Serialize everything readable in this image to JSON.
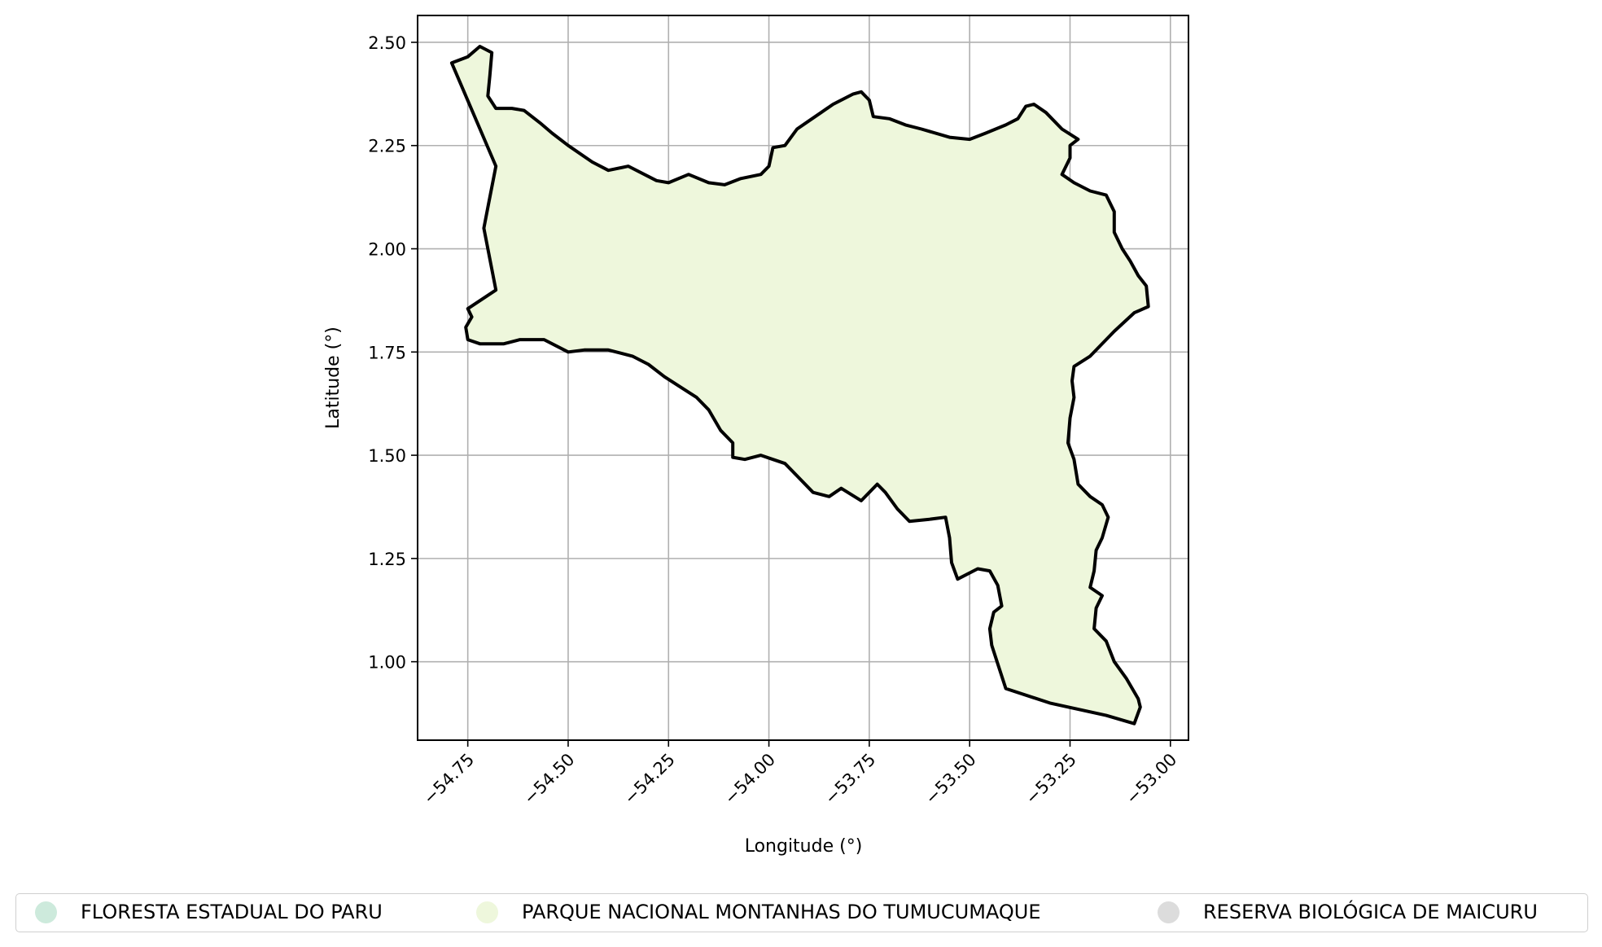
{
  "chart_data": {
    "type": "map",
    "xlabel": "Longitude (°)",
    "ylabel": "Latitude (°)",
    "xlim": [
      -54.875,
      -52.955
    ],
    "ylim": [
      0.81,
      2.565
    ],
    "x_ticks": [
      "−54.75",
      "−54.50",
      "−54.25",
      "−54.00",
      "−53.75",
      "−53.50",
      "−53.25",
      "−53.00"
    ],
    "x_tick_values": [
      -54.75,
      -54.5,
      -54.25,
      -54.0,
      -53.75,
      -53.5,
      -53.25,
      -53.0
    ],
    "y_ticks": [
      "1.00",
      "1.25",
      "1.50",
      "1.75",
      "2.00",
      "2.25",
      "2.50"
    ],
    "y_tick_values": [
      1.0,
      1.25,
      1.5,
      1.75,
      2.0,
      2.25,
      2.5
    ],
    "grid": true,
    "legend_placement": "bottom",
    "shapes": [
      {
        "name": "PARQUE NACIONAL MONTANHAS DO TUMUCUMAQUE",
        "fill": "#eef7dc",
        "edge": "#000000",
        "boundary": [
          [
            -54.79,
            2.45
          ],
          [
            -54.75,
            2.465
          ],
          [
            -54.72,
            2.49
          ],
          [
            -54.69,
            2.475
          ],
          [
            -54.695,
            2.42
          ],
          [
            -54.7,
            2.37
          ],
          [
            -54.68,
            2.34
          ],
          [
            -54.64,
            2.34
          ],
          [
            -54.61,
            2.335
          ],
          [
            -54.57,
            2.305
          ],
          [
            -54.54,
            2.28
          ],
          [
            -54.5,
            2.25
          ],
          [
            -54.44,
            2.21
          ],
          [
            -54.4,
            2.19
          ],
          [
            -54.35,
            2.2
          ],
          [
            -54.28,
            2.165
          ],
          [
            -54.25,
            2.16
          ],
          [
            -54.2,
            2.18
          ],
          [
            -54.15,
            2.16
          ],
          [
            -54.11,
            2.155
          ],
          [
            -54.07,
            2.17
          ],
          [
            -54.02,
            2.18
          ],
          [
            -54.0,
            2.2
          ],
          [
            -53.99,
            2.245
          ],
          [
            -53.96,
            2.25
          ],
          [
            -53.93,
            2.29
          ],
          [
            -53.9,
            2.31
          ],
          [
            -53.87,
            2.33
          ],
          [
            -53.84,
            2.35
          ],
          [
            -53.79,
            2.375
          ],
          [
            -53.77,
            2.38
          ],
          [
            -53.75,
            2.36
          ],
          [
            -53.74,
            2.32
          ],
          [
            -53.7,
            2.315
          ],
          [
            -53.66,
            2.3
          ],
          [
            -53.62,
            2.29
          ],
          [
            -53.55,
            2.27
          ],
          [
            -53.5,
            2.265
          ],
          [
            -53.46,
            2.28
          ],
          [
            -53.41,
            2.3
          ],
          [
            -53.38,
            2.315
          ],
          [
            -53.36,
            2.345
          ],
          [
            -53.34,
            2.35
          ],
          [
            -53.31,
            2.33
          ],
          [
            -53.27,
            2.29
          ],
          [
            -53.23,
            2.265
          ],
          [
            -53.25,
            2.25
          ],
          [
            -53.25,
            2.22
          ],
          [
            -53.27,
            2.18
          ],
          [
            -53.24,
            2.16
          ],
          [
            -53.2,
            2.14
          ],
          [
            -53.16,
            2.13
          ],
          [
            -53.14,
            2.09
          ],
          [
            -53.14,
            2.04
          ],
          [
            -53.12,
            2.0
          ],
          [
            -53.1,
            1.97
          ],
          [
            -53.08,
            1.935
          ],
          [
            -53.06,
            1.91
          ],
          [
            -53.055,
            1.86
          ],
          [
            -53.09,
            1.845
          ],
          [
            -53.14,
            1.8
          ],
          [
            -53.2,
            1.74
          ],
          [
            -53.24,
            1.715
          ],
          [
            -53.245,
            1.68
          ],
          [
            -53.24,
            1.64
          ],
          [
            -53.25,
            1.59
          ],
          [
            -53.255,
            1.53
          ],
          [
            -53.24,
            1.49
          ],
          [
            -53.23,
            1.43
          ],
          [
            -53.2,
            1.4
          ],
          [
            -53.17,
            1.38
          ],
          [
            -53.155,
            1.35
          ],
          [
            -53.17,
            1.3
          ],
          [
            -53.185,
            1.27
          ],
          [
            -53.19,
            1.22
          ],
          [
            -53.2,
            1.18
          ],
          [
            -53.17,
            1.16
          ],
          [
            -53.185,
            1.13
          ],
          [
            -53.19,
            1.08
          ],
          [
            -53.16,
            1.05
          ],
          [
            -53.14,
            1.0
          ],
          [
            -53.11,
            0.96
          ],
          [
            -53.08,
            0.91
          ],
          [
            -53.075,
            0.89
          ],
          [
            -53.09,
            0.85
          ],
          [
            -53.16,
            0.87
          ],
          [
            -53.3,
            0.9
          ],
          [
            -53.41,
            0.935
          ],
          [
            -53.43,
            0.995
          ],
          [
            -53.445,
            1.04
          ],
          [
            -53.45,
            1.08
          ],
          [
            -53.44,
            1.12
          ],
          [
            -53.42,
            1.135
          ],
          [
            -53.43,
            1.185
          ],
          [
            -53.45,
            1.22
          ],
          [
            -53.48,
            1.225
          ],
          [
            -53.53,
            1.2
          ],
          [
            -53.545,
            1.24
          ],
          [
            -53.55,
            1.3
          ],
          [
            -53.56,
            1.35
          ],
          [
            -53.6,
            1.345
          ],
          [
            -53.65,
            1.34
          ],
          [
            -53.68,
            1.37
          ],
          [
            -53.71,
            1.41
          ],
          [
            -53.73,
            1.43
          ],
          [
            -53.77,
            1.39
          ],
          [
            -53.82,
            1.42
          ],
          [
            -53.85,
            1.4
          ],
          [
            -53.89,
            1.41
          ],
          [
            -53.93,
            1.45
          ],
          [
            -53.96,
            1.48
          ],
          [
            -53.99,
            1.49
          ],
          [
            -54.02,
            1.5
          ],
          [
            -54.06,
            1.49
          ],
          [
            -54.09,
            1.495
          ],
          [
            -54.09,
            1.53
          ],
          [
            -54.12,
            1.56
          ],
          [
            -54.15,
            1.61
          ],
          [
            -54.18,
            1.64
          ],
          [
            -54.22,
            1.665
          ],
          [
            -54.26,
            1.69
          ],
          [
            -54.3,
            1.72
          ],
          [
            -54.34,
            1.74
          ],
          [
            -54.4,
            1.755
          ],
          [
            -54.46,
            1.755
          ],
          [
            -54.5,
            1.75
          ],
          [
            -54.56,
            1.78
          ],
          [
            -54.62,
            1.78
          ],
          [
            -54.66,
            1.77
          ],
          [
            -54.72,
            1.77
          ],
          [
            -54.75,
            1.78
          ],
          [
            -54.755,
            1.81
          ],
          [
            -54.74,
            1.835
          ],
          [
            -54.75,
            1.855
          ],
          [
            -54.68,
            1.9
          ],
          [
            -54.71,
            2.05
          ],
          [
            -54.7,
            2.1
          ],
          [
            -54.68,
            2.2
          ],
          [
            -54.79,
            2.45
          ]
        ]
      }
    ],
    "legend": [
      {
        "label": "FLORESTA ESTADUAL DO PARU",
        "color": "#cdeadc"
      },
      {
        "label": "PARQUE NACIONAL MONTANHAS DO TUMUCUMAQUE",
        "color": "#eef7dc"
      },
      {
        "label": "RESERVA BIOLÓGICA DE MAICURU",
        "color": "#dcdcdc"
      }
    ]
  }
}
